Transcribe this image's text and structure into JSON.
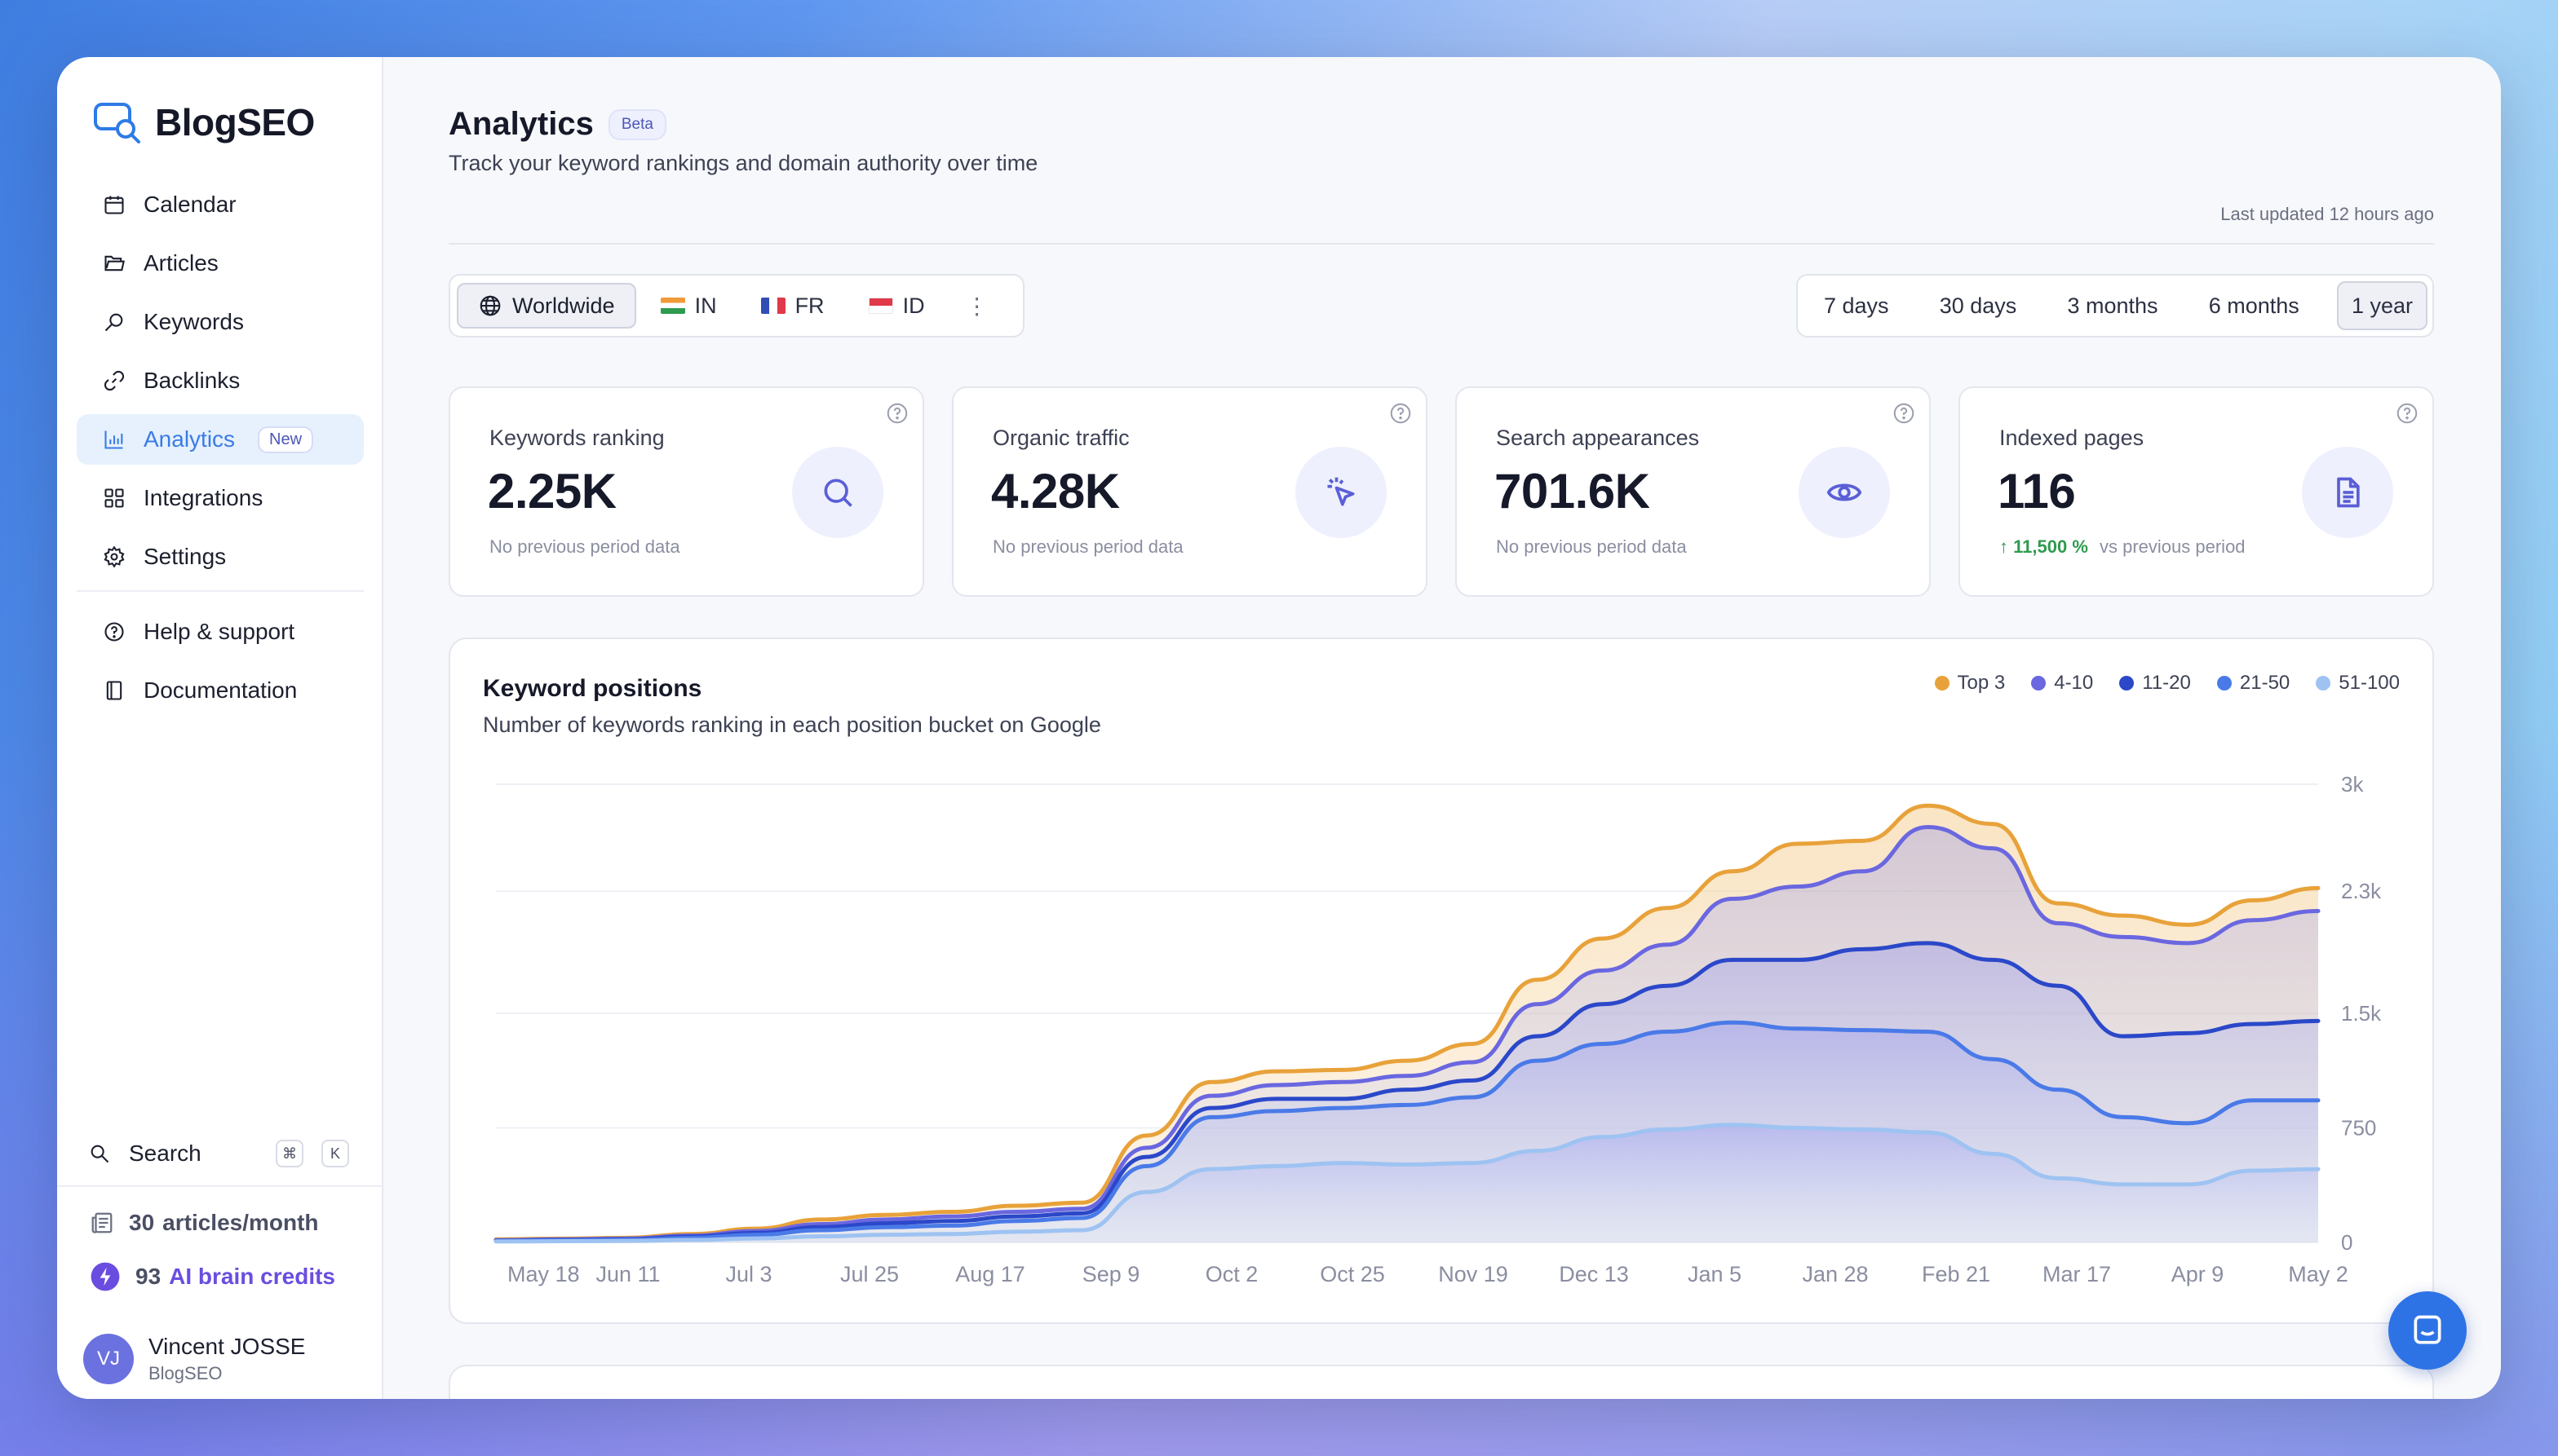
{
  "app": {
    "name": "BlogSEO"
  },
  "sidebar": {
    "items": [
      {
        "label": "Calendar",
        "icon": "calendar-icon"
      },
      {
        "label": "Articles",
        "icon": "folder-icon"
      },
      {
        "label": "Keywords",
        "icon": "search-icon"
      },
      {
        "label": "Backlinks",
        "icon": "link-icon"
      },
      {
        "label": "Analytics",
        "icon": "bar-chart-icon",
        "badge": "New",
        "active": true
      },
      {
        "label": "Integrations",
        "icon": "grid-icon"
      },
      {
        "label": "Settings",
        "icon": "gear-icon"
      }
    ],
    "secondary": [
      {
        "label": "Help & support",
        "icon": "help-circle-icon"
      },
      {
        "label": "Documentation",
        "icon": "book-icon"
      }
    ],
    "search": {
      "label": "Search",
      "shortcut_mod": "⌘",
      "shortcut_key": "K"
    },
    "articles_per_month": {
      "count": "30",
      "label": "articles/month"
    },
    "credits": {
      "count": "93",
      "label": "AI brain credits"
    },
    "user": {
      "initials": "VJ",
      "name": "Vincent JOSSE",
      "org": "BlogSEO"
    }
  },
  "header": {
    "title": "Analytics",
    "badge": "Beta",
    "subtitle": "Track your keyword rankings and domain authority over time",
    "updated": "Last updated 12 hours ago"
  },
  "regions": [
    {
      "label": "Worldwide",
      "active": true
    },
    {
      "label": "IN",
      "flag": "india"
    },
    {
      "label": "FR",
      "flag": "france"
    },
    {
      "label": "ID",
      "flag": "indonesia"
    }
  ],
  "ranges": [
    {
      "label": "7 days"
    },
    {
      "label": "30 days"
    },
    {
      "label": "3 months"
    },
    {
      "label": "6 months"
    },
    {
      "label": "1 year",
      "active": true
    }
  ],
  "cards": [
    {
      "label": "Keywords ranking",
      "value": "2.25K",
      "note": "No previous period data",
      "icon": "search-icon"
    },
    {
      "label": "Organic traffic",
      "value": "4.28K",
      "note": "No previous period data",
      "icon": "cursor-click-icon"
    },
    {
      "label": "Search appearances",
      "value": "701.6K",
      "note": "No previous period data",
      "icon": "eye-icon"
    },
    {
      "label": "Indexed pages",
      "value": "116",
      "change": "11,500 %",
      "note": "vs previous period",
      "icon": "document-icon"
    }
  ],
  "colors": {
    "top3": "#e8a23a",
    "p4_10": "#6a67e0",
    "p11_20": "#2b48c9",
    "p21_50": "#4a7ae8",
    "p51_100": "#9ec3f2"
  },
  "chart_data": {
    "type": "area",
    "title": "Keyword positions",
    "subtitle": "Number of keywords ranking in each position bucket on Google",
    "x_tick_labels": [
      "May 18",
      "Jun 11",
      "Jul 3",
      "Jul 25",
      "Aug 17",
      "Sep 9",
      "Oct 2",
      "Oct 25",
      "Nov 19",
      "Dec 13",
      "Jan 5",
      "Jan 28",
      "Feb 21",
      "Mar 17",
      "Apr 9",
      "May 2"
    ],
    "y_tick_labels": [
      "0",
      "750",
      "1.5k",
      "2.3k",
      "3k"
    ],
    "ylim": [
      0,
      3000
    ],
    "x": [
      "May 18",
      "Jun 11",
      "Jul 3",
      "Jul 25",
      "Aug 17",
      "Sep 9",
      "Oct 2",
      "Oct 25",
      "Nov 10",
      "Nov 19",
      "Nov 26",
      "Dec 3",
      "Dec 13",
      "Dec 22",
      "Jan 5",
      "Jan 15",
      "Jan 28",
      "Feb 5",
      "Feb 12",
      "Feb 21",
      "Mar 1",
      "Mar 10",
      "Mar 17",
      "Mar 24",
      "Mar 31",
      "Apr 9",
      "Apr 17",
      "Apr 25",
      "May 2"
    ],
    "series": [
      {
        "name": "Top 3",
        "values": [
          20,
          25,
          30,
          55,
          90,
          150,
          180,
          200,
          240,
          260,
          700,
          1050,
          1120,
          1130,
          1190,
          1300,
          1720,
          1990,
          2190,
          2430,
          2610,
          2630,
          2860,
          2740,
          2220,
          2140,
          2080,
          2240,
          2320
        ]
      },
      {
        "name": "4-10",
        "values": [
          15,
          20,
          25,
          45,
          75,
          120,
          150,
          170,
          200,
          220,
          620,
          960,
          1030,
          1050,
          1090,
          1180,
          1560,
          1780,
          1950,
          2250,
          2330,
          2430,
          2720,
          2580,
          2090,
          2000,
          1960,
          2110,
          2170
        ]
      },
      {
        "name": "11-20",
        "values": [
          12,
          16,
          20,
          38,
          62,
          100,
          125,
          140,
          170,
          190,
          560,
          880,
          940,
          940,
          1000,
          1060,
          1350,
          1560,
          1680,
          1850,
          1850,
          1920,
          1960,
          1850,
          1680,
          1350,
          1370,
          1430,
          1450
        ]
      },
      {
        "name": "21-50",
        "values": [
          10,
          13,
          16,
          30,
          50,
          80,
          100,
          110,
          140,
          160,
          500,
          820,
          860,
          880,
          900,
          950,
          1190,
          1300,
          1380,
          1440,
          1400,
          1390,
          1380,
          1200,
          1000,
          820,
          780,
          930,
          930
        ]
      },
      {
        "name": "51-100",
        "values": [
          6,
          8,
          10,
          16,
          26,
          40,
          50,
          55,
          70,
          80,
          330,
          480,
          500,
          520,
          510,
          520,
          600,
          690,
          740,
          770,
          750,
          740,
          720,
          580,
          420,
          380,
          380,
          470,
          480
        ]
      }
    ]
  },
  "chat": {
    "icon": "chat-icon"
  }
}
